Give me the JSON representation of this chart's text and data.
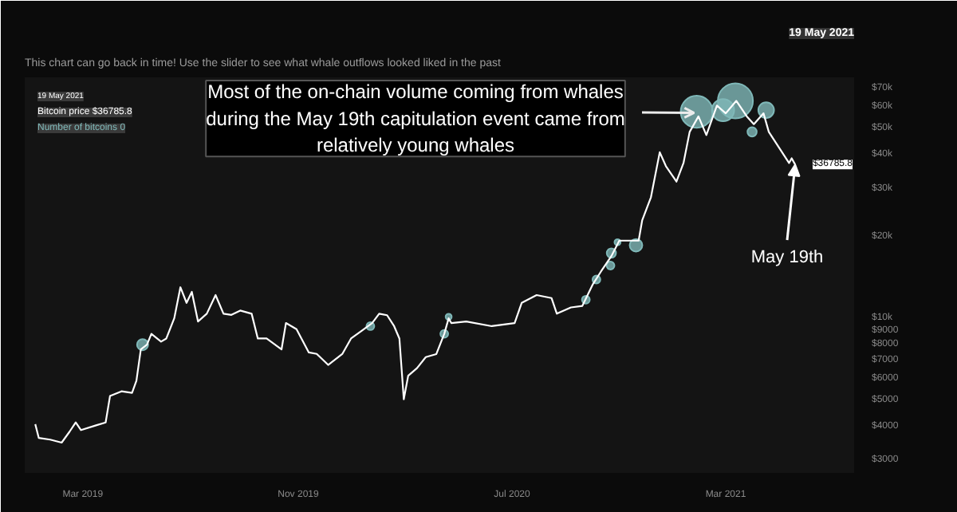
{
  "chart_data": {
    "type": "line",
    "subtitle": "This chart can go back in time! Use the slider to see what whale outflows looked liked in the past",
    "log": "y",
    "ylim": [
      2700,
      77000
    ],
    "yticks": [
      {
        "value": 3000,
        "label": "$3000"
      },
      {
        "value": 4000,
        "label": "$4000"
      },
      {
        "value": 5000,
        "label": "$5000"
      },
      {
        "value": 6000,
        "label": "$6000"
      },
      {
        "value": 7000,
        "label": "$7000"
      },
      {
        "value": 8000,
        "label": "$8000"
      },
      {
        "value": 9000,
        "label": "$9000"
      },
      {
        "value": 10000,
        "label": "$10k"
      },
      {
        "value": 20000,
        "label": "$20k"
      },
      {
        "value": 30000,
        "label": "$30k"
      },
      {
        "value": 40000,
        "label": "$40k"
      },
      {
        "value": 50000,
        "label": "$50k"
      },
      {
        "value": 60000,
        "label": "$60k"
      },
      {
        "value": 70000,
        "label": "$70k"
      }
    ],
    "xlim": [
      "2018-12-25",
      "2021-07-25"
    ],
    "xticks": [
      {
        "value": "2019-03-01",
        "label": "Mar 2019"
      },
      {
        "value": "2019-11-01",
        "label": "Nov 2019"
      },
      {
        "value": "2020-07-01",
        "label": "Jul 2020"
      },
      {
        "value": "2021-03-01",
        "label": "Mar 2021"
      }
    ],
    "series": [
      {
        "type": "bubble",
        "color": "#7fb8b8",
        "x": [
          "2019-05-08",
          "2020-01-22",
          "2020-04-15",
          "2020-04-20",
          "2020-09-23",
          "2020-10-05",
          "2020-10-21",
          "2020-10-22",
          "2020-10-29",
          "2020-11-19",
          "2021-01-27",
          "2021-02-26",
          "2021-03-12",
          "2021-03-31",
          "2021-04-16"
        ],
        "values": [
          8000,
          9360,
          8770,
          10130,
          11710,
          13890,
          15640,
          17380,
          19050,
          18570,
          57540,
          58330,
          63100,
          48520,
          58330
        ],
        "sizes": [
          0.1,
          0.05,
          0.05,
          0.03,
          0.05,
          0.05,
          0.05,
          0.07,
          0.03,
          0.13,
          0.83,
          0.4,
          1,
          0.07,
          0.2
        ]
      },
      {
        "color": "#ffffff",
        "x": [
          "2019-01-06",
          "2019-01-10",
          "2019-01-23",
          "2019-02-05",
          "2019-02-14",
          "2019-02-21",
          "2019-02-27",
          "2019-03-16",
          "2019-03-27",
          "2019-04-01",
          "2019-04-14",
          "2019-04-26",
          "2019-05-01",
          "2019-05-06",
          "2019-05-13",
          "2019-05-18",
          "2019-05-29",
          "2019-06-04",
          "2019-06-13",
          "2019-06-20",
          "2019-06-27",
          "2019-07-03",
          "2019-07-10",
          "2019-07-20",
          "2019-07-30",
          "2019-08-08",
          "2019-08-17",
          "2019-08-27",
          "2019-09-09",
          "2019-09-16",
          "2019-09-26",
          "2019-10-13",
          "2019-10-18",
          "2019-10-30",
          "2019-11-13",
          "2019-11-22",
          "2019-12-05",
          "2019-12-21",
          "2019-12-31",
          "2020-01-12",
          "2020-01-24",
          "2020-02-01",
          "2020-02-10",
          "2020-02-18",
          "2020-02-24",
          "2020-02-29",
          "2020-03-05",
          "2020-03-15",
          "2020-03-25",
          "2020-04-06",
          "2020-04-15",
          "2020-04-20",
          "2020-04-23",
          "2020-05-10",
          "2020-06-08",
          "2020-07-04",
          "2020-07-12",
          "2020-07-29",
          "2020-08-15",
          "2020-08-21",
          "2020-09-06",
          "2020-09-19",
          "2020-10-01",
          "2020-10-10",
          "2020-10-22",
          "2020-10-31",
          "2020-11-14",
          "2020-11-22",
          "2020-11-26",
          "2020-12-06",
          "2020-12-16",
          "2020-12-23",
          "2021-01-04",
          "2021-01-12",
          "2021-01-19",
          "2021-01-29",
          "2021-02-07",
          "2021-02-19",
          "2021-03-01",
          "2021-03-13",
          "2021-03-25",
          "2021-04-02",
          "2021-04-13",
          "2021-04-19",
          "2021-05-12",
          "2021-05-15",
          "2021-05-19"
        ],
        "values": [
          4080,
          3630,
          3580,
          3490,
          3830,
          4140,
          3880,
          4040,
          4140,
          5180,
          5390,
          5320,
          5900,
          7690,
          8000,
          8770,
          8210,
          8430,
          10000,
          13010,
          11400,
          12510,
          9740,
          10400,
          12180,
          10400,
          10300,
          10680,
          10400,
          8430,
          8430,
          7690,
          9610,
          9120,
          7490,
          7400,
          6740,
          7390,
          8430,
          9000,
          9610,
          10400,
          10270,
          9360,
          8430,
          5040,
          6150,
          6560,
          7200,
          7390,
          8770,
          10000,
          9610,
          9740,
          9360,
          9610,
          11400,
          12180,
          11870,
          10400,
          10970,
          11110,
          13360,
          14840,
          16930,
          19310,
          19310,
          19310,
          22910,
          27900,
          40840,
          36310,
          31840,
          37260,
          48520,
          55340,
          47230,
          60670,
          56780,
          63100,
          55340,
          51800,
          56780,
          48520,
          37260,
          38790,
          36785.8
        ]
      }
    ],
    "annotations": [
      "19 May 2021",
      "19 May 2021",
      "Bitcoin price $36785.8",
      "Number of bitcoins 0",
      {
        "text": "Most of the on-chain volume coming from whales\nduring the May 19th capitulation event came from\nrelatively young whales",
        "x": "2021-01-24",
        "y": 57000
      },
      {
        "text": "May 19th",
        "x": "2021-05-19",
        "y": 36785.8
      },
      "$36785.8"
    ]
  }
}
